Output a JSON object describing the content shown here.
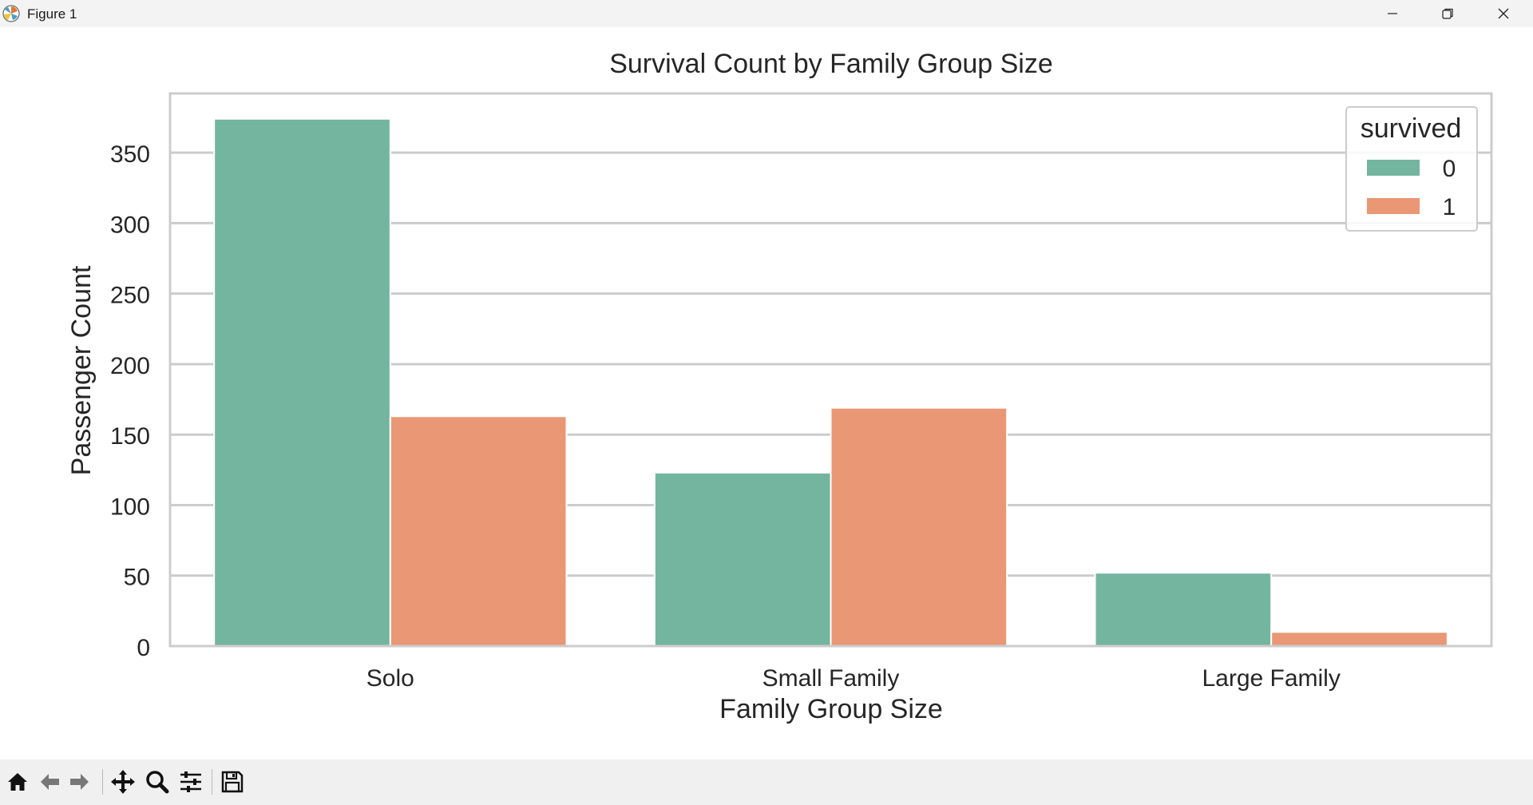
{
  "window": {
    "title": "Figure 1",
    "icons": [
      "matplotlib-logo-icon",
      "minimize-icon",
      "restore-icon",
      "close-icon"
    ]
  },
  "toolbar": {
    "icons": [
      "home-icon",
      "back-arrow-icon",
      "forward-arrow-icon",
      "pan-move-icon",
      "zoom-magnifier-icon",
      "configure-subplots-icon",
      "save-disk-icon"
    ]
  },
  "chart_data": {
    "type": "bar",
    "title": "Survival Count by Family Group Size",
    "xlabel": "Family Group Size",
    "ylabel": "Passenger Count",
    "categories": [
      "Solo",
      "Small Family",
      "Large Family"
    ],
    "series": [
      {
        "name": "0",
        "color": "#73b59f",
        "values": [
          374,
          123,
          52
        ]
      },
      {
        "name": "1",
        "color": "#e99775",
        "values": [
          163,
          169,
          10
        ]
      }
    ],
    "ylim": [
      0,
      392
    ],
    "yticks": [
      0,
      50,
      100,
      150,
      200,
      250,
      300,
      350
    ],
    "grid": true,
    "legend": {
      "title": "survived",
      "placement": "top-right"
    }
  }
}
